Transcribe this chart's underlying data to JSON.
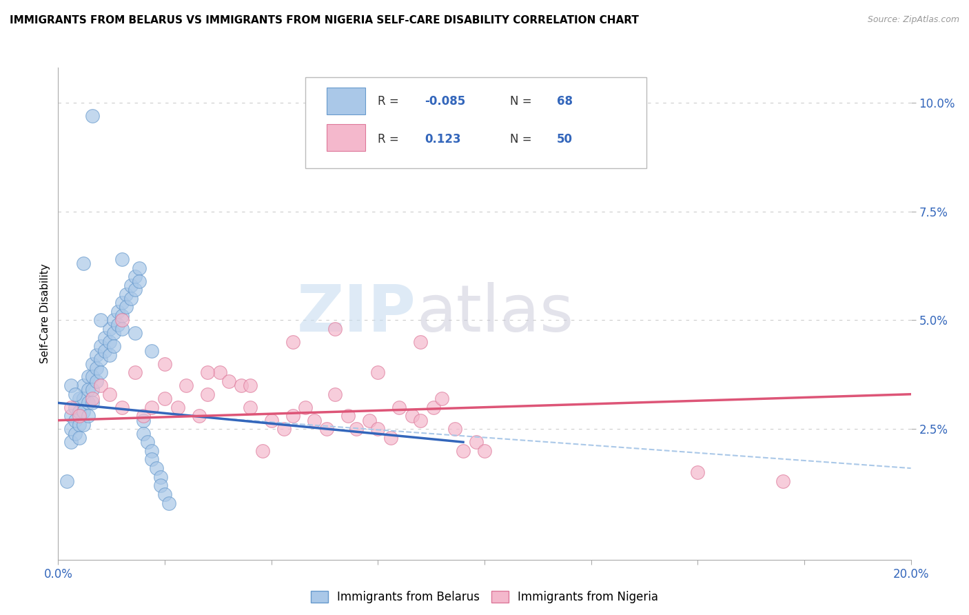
{
  "title": "IMMIGRANTS FROM BELARUS VS IMMIGRANTS FROM NIGERIA SELF-CARE DISABILITY CORRELATION CHART",
  "source": "Source: ZipAtlas.com",
  "ylabel": "Self-Care Disability",
  "xlim": [
    0.0,
    0.2
  ],
  "ylim": [
    -0.005,
    0.108
  ],
  "yticks": [
    0.025,
    0.05,
    0.075,
    0.1
  ],
  "ytick_labels": [
    "2.5%",
    "5.0%",
    "7.5%",
    "10.0%"
  ],
  "belarus_R": -0.085,
  "belarus_N": 68,
  "nigeria_R": 0.123,
  "nigeria_N": 50,
  "belarus_color": "#aac8e8",
  "nigeria_color": "#f4b8cc",
  "belarus_edge_color": "#6699cc",
  "nigeria_edge_color": "#dd7799",
  "belarus_line_color": "#3366bb",
  "nigeria_line_color": "#dd5577",
  "dashed_line_color": "#aac8e8",
  "watermark_zip": "ZIP",
  "watermark_atlas": "atlas",
  "legend_R_color": "#3366bb",
  "belarus_scatter_x": [
    0.002,
    0.003,
    0.003,
    0.003,
    0.004,
    0.004,
    0.004,
    0.005,
    0.005,
    0.005,
    0.005,
    0.006,
    0.006,
    0.006,
    0.006,
    0.007,
    0.007,
    0.007,
    0.007,
    0.008,
    0.008,
    0.008,
    0.008,
    0.009,
    0.009,
    0.009,
    0.01,
    0.01,
    0.01,
    0.011,
    0.011,
    0.012,
    0.012,
    0.012,
    0.013,
    0.013,
    0.013,
    0.014,
    0.014,
    0.015,
    0.015,
    0.015,
    0.016,
    0.016,
    0.017,
    0.017,
    0.018,
    0.018,
    0.019,
    0.019,
    0.02,
    0.02,
    0.021,
    0.022,
    0.022,
    0.023,
    0.024,
    0.024,
    0.025,
    0.026,
    0.015,
    0.018,
    0.022,
    0.01,
    0.008,
    0.006,
    0.003,
    0.004
  ],
  "belarus_scatter_y": [
    0.013,
    0.028,
    0.025,
    0.022,
    0.03,
    0.027,
    0.024,
    0.032,
    0.029,
    0.026,
    0.023,
    0.035,
    0.032,
    0.029,
    0.026,
    0.037,
    0.034,
    0.031,
    0.028,
    0.04,
    0.037,
    0.034,
    0.031,
    0.042,
    0.039,
    0.036,
    0.044,
    0.041,
    0.038,
    0.046,
    0.043,
    0.048,
    0.045,
    0.042,
    0.05,
    0.047,
    0.044,
    0.052,
    0.049,
    0.054,
    0.051,
    0.048,
    0.056,
    0.053,
    0.058,
    0.055,
    0.06,
    0.057,
    0.062,
    0.059,
    0.027,
    0.024,
    0.022,
    0.02,
    0.018,
    0.016,
    0.014,
    0.012,
    0.01,
    0.008,
    0.064,
    0.047,
    0.043,
    0.05,
    0.097,
    0.063,
    0.035,
    0.033
  ],
  "nigeria_scatter_x": [
    0.003,
    0.005,
    0.008,
    0.01,
    0.012,
    0.015,
    0.018,
    0.02,
    0.022,
    0.025,
    0.028,
    0.03,
    0.033,
    0.035,
    0.038,
    0.04,
    0.043,
    0.045,
    0.048,
    0.05,
    0.053,
    0.055,
    0.058,
    0.06,
    0.063,
    0.065,
    0.068,
    0.07,
    0.073,
    0.075,
    0.078,
    0.08,
    0.083,
    0.085,
    0.088,
    0.09,
    0.093,
    0.095,
    0.098,
    0.1,
    0.015,
    0.025,
    0.035,
    0.045,
    0.055,
    0.065,
    0.075,
    0.085,
    0.15,
    0.17
  ],
  "nigeria_scatter_y": [
    0.03,
    0.028,
    0.032,
    0.035,
    0.033,
    0.03,
    0.038,
    0.028,
    0.03,
    0.032,
    0.03,
    0.035,
    0.028,
    0.033,
    0.038,
    0.036,
    0.035,
    0.03,
    0.02,
    0.027,
    0.025,
    0.028,
    0.03,
    0.027,
    0.025,
    0.033,
    0.028,
    0.025,
    0.027,
    0.025,
    0.023,
    0.03,
    0.028,
    0.027,
    0.03,
    0.032,
    0.025,
    0.02,
    0.022,
    0.02,
    0.05,
    0.04,
    0.038,
    0.035,
    0.045,
    0.048,
    0.038,
    0.045,
    0.015,
    0.013
  ],
  "belarus_trend_x": [
    0.0,
    0.095
  ],
  "belarus_trend_y": [
    0.031,
    0.022
  ],
  "nigeria_trend_x": [
    0.0,
    0.2
  ],
  "nigeria_trend_y": [
    0.027,
    0.033
  ],
  "dashed_trend_x": [
    0.03,
    0.2
  ],
  "dashed_trend_y": [
    0.028,
    0.016
  ]
}
